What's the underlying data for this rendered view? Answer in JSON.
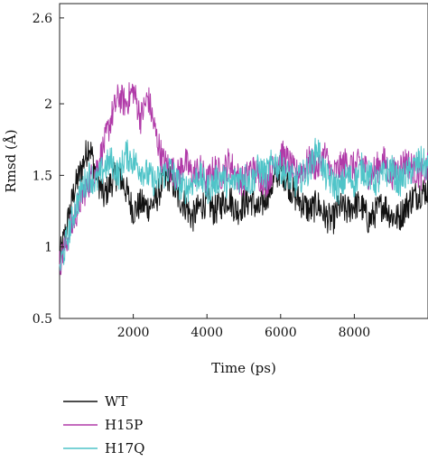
{
  "chart_data": {
    "type": "line",
    "title": "",
    "xlabel": "Time (ps)",
    "ylabel": "Rmsd (Å)",
    "xlim": [
      0,
      10000
    ],
    "ylim": [
      0.5,
      2.7
    ],
    "x_ticks": [
      2000,
      4000,
      6000,
      8000
    ],
    "x_tick_labels": [
      "2000",
      "4000",
      "6000",
      "8000"
    ],
    "y_ticks": [
      0.5,
      1,
      1.5,
      2,
      2.6
    ],
    "y_tick_labels": [
      "0.5",
      "1",
      "1.5",
      "2",
      "2.6"
    ],
    "grid": false,
    "legend_position": "below",
    "series": [
      {
        "name": "WT",
        "color": "#111111",
        "x": [
          0,
          200,
          400,
          600,
          800,
          1000,
          1200,
          1400,
          1600,
          1800,
          2000,
          2200,
          2400,
          2600,
          2800,
          3000,
          3200,
          3400,
          3600,
          3800,
          4000,
          4200,
          4400,
          4600,
          4800,
          5000,
          5200,
          5400,
          5600,
          5800,
          6000,
          6200,
          6400,
          6600,
          6800,
          7000,
          7200,
          7400,
          7600,
          7800,
          8000,
          8200,
          8400,
          8600,
          8800,
          9000,
          9200,
          9400,
          9600,
          9800,
          10000
        ],
        "values": [
          0.92,
          1.15,
          1.4,
          1.55,
          1.72,
          1.5,
          1.35,
          1.45,
          1.52,
          1.4,
          1.25,
          1.3,
          1.28,
          1.32,
          1.45,
          1.5,
          1.35,
          1.3,
          1.2,
          1.28,
          1.32,
          1.25,
          1.3,
          1.35,
          1.25,
          1.3,
          1.33,
          1.25,
          1.35,
          1.45,
          1.55,
          1.45,
          1.35,
          1.3,
          1.25,
          1.3,
          1.22,
          1.18,
          1.28,
          1.25,
          1.3,
          1.28,
          1.18,
          1.25,
          1.3,
          1.22,
          1.2,
          1.28,
          1.35,
          1.38,
          1.4
        ]
      },
      {
        "name": "H15P",
        "color": "#b03aa8",
        "x": [
          0,
          200,
          400,
          600,
          800,
          1000,
          1200,
          1400,
          1600,
          1800,
          2000,
          2200,
          2400,
          2600,
          2800,
          3000,
          3200,
          3400,
          3600,
          3800,
          4000,
          4200,
          4400,
          4600,
          4800,
          5000,
          5200,
          5400,
          5600,
          5800,
          6000,
          6200,
          6400,
          6600,
          6800,
          7000,
          7200,
          7400,
          7600,
          7800,
          8000,
          8200,
          8400,
          8600,
          8800,
          9000,
          9200,
          9400,
          9600,
          9800,
          10000
        ],
        "values": [
          0.88,
          1.05,
          1.2,
          1.35,
          1.45,
          1.55,
          1.7,
          1.9,
          2.05,
          2.0,
          2.1,
          1.9,
          2.05,
          1.8,
          1.6,
          1.55,
          1.5,
          1.6,
          1.5,
          1.55,
          1.45,
          1.55,
          1.5,
          1.6,
          1.5,
          1.45,
          1.55,
          1.5,
          1.45,
          1.55,
          1.65,
          1.6,
          1.5,
          1.55,
          1.6,
          1.55,
          1.65,
          1.5,
          1.55,
          1.6,
          1.55,
          1.6,
          1.5,
          1.55,
          1.6,
          1.5,
          1.55,
          1.6,
          1.55,
          1.5,
          1.55
        ]
      },
      {
        "name": "H17Q",
        "color": "#4fc4c8",
        "x": [
          0,
          200,
          400,
          600,
          800,
          1000,
          1200,
          1400,
          1600,
          1800,
          2000,
          2200,
          2400,
          2600,
          2800,
          3000,
          3200,
          3400,
          3600,
          3800,
          4000,
          4200,
          4400,
          4600,
          4800,
          5000,
          5200,
          5400,
          5600,
          5800,
          6000,
          6200,
          6400,
          6600,
          6800,
          7000,
          7200,
          7400,
          7600,
          7800,
          8000,
          8200,
          8400,
          8600,
          8800,
          9000,
          9200,
          9400,
          9600,
          9800,
          10000
        ],
        "values": [
          0.85,
          1.05,
          1.25,
          1.4,
          1.5,
          1.45,
          1.55,
          1.6,
          1.5,
          1.65,
          1.6,
          1.55,
          1.5,
          1.45,
          1.5,
          1.55,
          1.45,
          1.4,
          1.45,
          1.5,
          1.4,
          1.45,
          1.5,
          1.42,
          1.48,
          1.5,
          1.45,
          1.55,
          1.5,
          1.6,
          1.55,
          1.5,
          1.45,
          1.5,
          1.55,
          1.7,
          1.5,
          1.45,
          1.4,
          1.5,
          1.45,
          1.55,
          1.5,
          1.45,
          1.5,
          1.55,
          1.45,
          1.5,
          1.55,
          1.6,
          1.55
        ]
      }
    ]
  }
}
